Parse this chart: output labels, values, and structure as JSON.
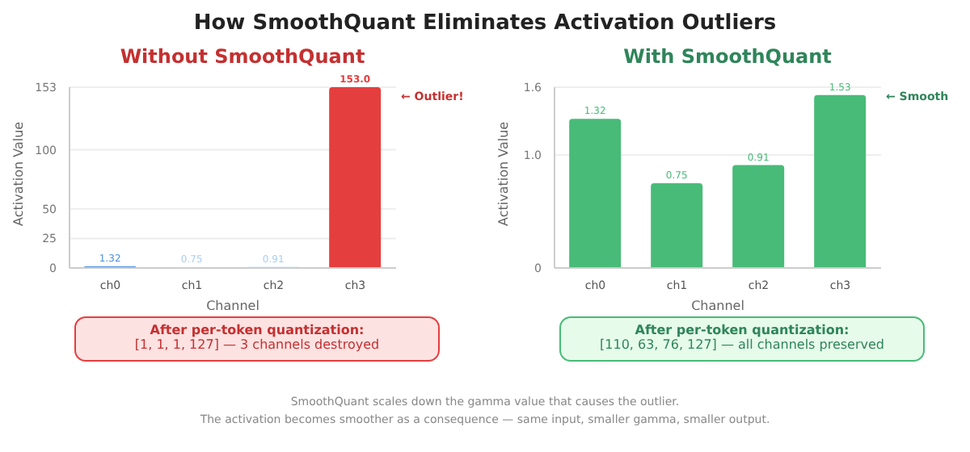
{
  "chart_data": [
    {
      "type": "bar",
      "title": "How SmoothQuant Eliminates Activation Outliers",
      "subtitle": "Without SmoothQuant",
      "xlabel": "Channel",
      "ylabel": "Activation Value",
      "categories": [
        "ch0",
        "ch1",
        "ch2",
        "ch3"
      ],
      "values": [
        1.32,
        0.75,
        0.91,
        153.0
      ],
      "colors": [
        "#4a90e2",
        "#a9cdf2",
        "#a9cdf2",
        "#e53e3e"
      ],
      "value_labels": [
        "1.32",
        "0.75",
        "0.91",
        "153.0"
      ],
      "ylim": [
        0,
        153
      ],
      "yticks": [
        0,
        25,
        50,
        100,
        153
      ],
      "grid": "y",
      "annotations": [
        "← Outlier!",
        "After per-token quantization:",
        "[1, 1, 1, 127] — 3 channels destroyed",
        "SmoothQuant scales down the gamma value that causes the outlier.",
        "The activation becomes smoother as a consequence — same input, smaller gamma, smaller output."
      ]
    },
    {
      "type": "bar",
      "title": "With SmoothQuant",
      "xlabel": "Channel",
      "ylabel": "Activation Value",
      "categories": [
        "ch0",
        "ch1",
        "ch2",
        "ch3"
      ],
      "values": [
        1.32,
        0.75,
        0.91,
        1.53
      ],
      "colors": [
        "#48bb78",
        "#48bb78",
        "#48bb78",
        "#48bb78"
      ],
      "data_labels": true,
      "ylim": [
        0,
        1.6
      ],
      "yticks": [
        0,
        {
          "value": 1,
          "label": "1.0"
        },
        1.6
      ],
      "grid": "y",
      "annotations": [
        "← Smooth",
        "After per-token quantization:",
        "[110, 63, 76, 127] — all channels preserved"
      ]
    }
  ]
}
